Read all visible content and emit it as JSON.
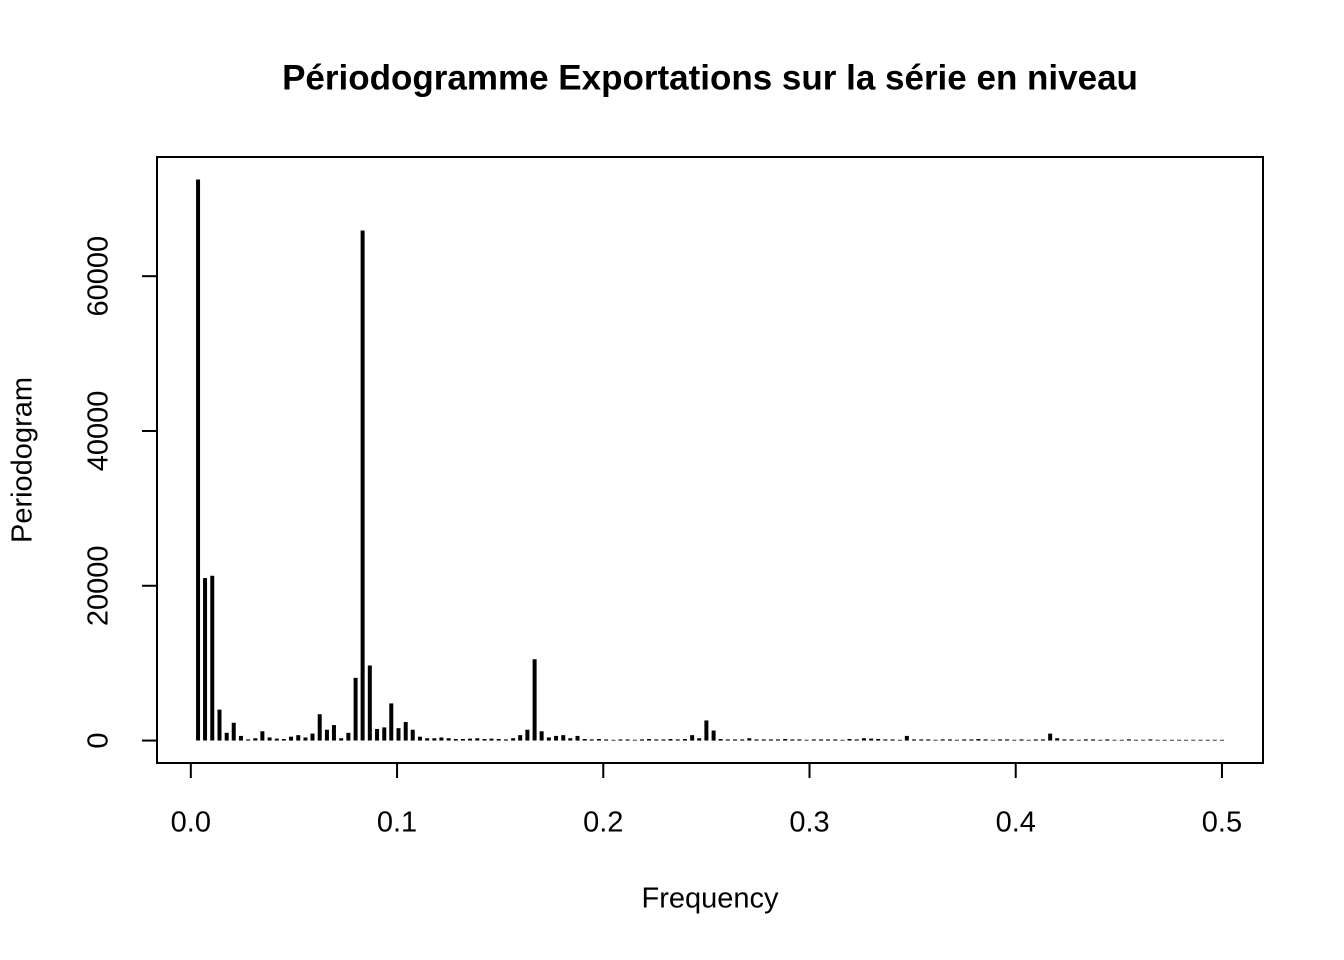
{
  "chart_data": {
    "type": "spike",
    "title": "Périodogramme Exportations sur la série en niveau",
    "x_label": "Frequency",
    "y_label": "Periodogram",
    "color": "#000000",
    "x": [
      0.0035,
      0.0069,
      0.0104,
      0.0139,
      0.0174,
      0.0208,
      0.0243,
      0.0278,
      0.0313,
      0.0347,
      0.0382,
      0.0417,
      0.0451,
      0.0486,
      0.0521,
      0.0556,
      0.059,
      0.0625,
      0.066,
      0.0694,
      0.0729,
      0.0764,
      0.0799,
      0.0833,
      0.0868,
      0.0903,
      0.0938,
      0.0972,
      0.1007,
      0.1042,
      0.1076,
      0.1111,
      0.1146,
      0.1181,
      0.1215,
      0.125,
      0.1285,
      0.1319,
      0.1354,
      0.1389,
      0.1424,
      0.1458,
      0.1493,
      0.1528,
      0.1563,
      0.1597,
      0.1632,
      0.1667,
      0.1701,
      0.1736,
      0.1771,
      0.1806,
      0.184,
      0.1875,
      0.191,
      0.1944,
      0.1979,
      0.2014,
      0.2049,
      0.2083,
      0.2118,
      0.2153,
      0.2188,
      0.2222,
      0.2257,
      0.2292,
      0.2326,
      0.2361,
      0.2396,
      0.2431,
      0.2465,
      0.25,
      0.2535,
      0.2569,
      0.2604,
      0.2639,
      0.2674,
      0.2708,
      0.2743,
      0.2778,
      0.2813,
      0.2847,
      0.2882,
      0.2917,
      0.2951,
      0.2986,
      0.3021,
      0.3056,
      0.309,
      0.3125,
      0.316,
      0.3194,
      0.3229,
      0.3264,
      0.3299,
      0.3333,
      0.3368,
      0.3403,
      0.3438,
      0.3472,
      0.3507,
      0.3542,
      0.3576,
      0.3611,
      0.3646,
      0.3681,
      0.3715,
      0.375,
      0.3785,
      0.3819,
      0.3854,
      0.3889,
      0.3924,
      0.3958,
      0.3993,
      0.4028,
      0.4063,
      0.4097,
      0.4132,
      0.4167,
      0.4201,
      0.4236,
      0.4271,
      0.4306,
      0.434,
      0.4375,
      0.441,
      0.4444,
      0.4479,
      0.4514,
      0.4549,
      0.4583,
      0.4618,
      0.4653,
      0.4688,
      0.4722,
      0.4757,
      0.4792,
      0.4826,
      0.4861,
      0.4896,
      0.4931,
      0.4965,
      0.5
    ],
    "values": [
      72500,
      21000,
      21300,
      4000,
      1000,
      2300,
      600,
      150,
      300,
      1200,
      400,
      250,
      200,
      500,
      700,
      400,
      900,
      3400,
      1400,
      2000,
      300,
      1000,
      8100,
      65900,
      9700,
      1500,
      1700,
      4800,
      1600,
      2400,
      1400,
      500,
      300,
      300,
      400,
      300,
      200,
      200,
      250,
      300,
      200,
      250,
      200,
      150,
      300,
      700,
      1400,
      10500,
      1200,
      400,
      600,
      700,
      300,
      600,
      200,
      150,
      200,
      150,
      100,
      150,
      150,
      100,
      150,
      200,
      150,
      150,
      200,
      150,
      200,
      700,
      300,
      2600,
      1300,
      200,
      150,
      150,
      150,
      300,
      150,
      150,
      150,
      150,
      200,
      150,
      150,
      100,
      150,
      150,
      150,
      150,
      100,
      200,
      150,
      300,
      250,
      200,
      150,
      150,
      100,
      600,
      150,
      150,
      150,
      100,
      150,
      150,
      100,
      150,
      150,
      200,
      150,
      100,
      150,
      150,
      100,
      150,
      100,
      150,
      150,
      900,
      300,
      150,
      150,
      100,
      150,
      150,
      100,
      150,
      100,
      100,
      150,
      100,
      100,
      150,
      100,
      100,
      100,
      100,
      100,
      100,
      100,
      100,
      100,
      100
    ],
    "xlim": [
      -0.0164,
      0.5199
    ],
    "ylim": [
      -2900,
      75400
    ],
    "xticks": [
      {
        "value": 0,
        "label": "0.0"
      },
      0.1,
      0.2,
      0.3,
      0.4,
      0.5
    ],
    "yticks": [
      0,
      20000,
      40000,
      60000
    ]
  }
}
